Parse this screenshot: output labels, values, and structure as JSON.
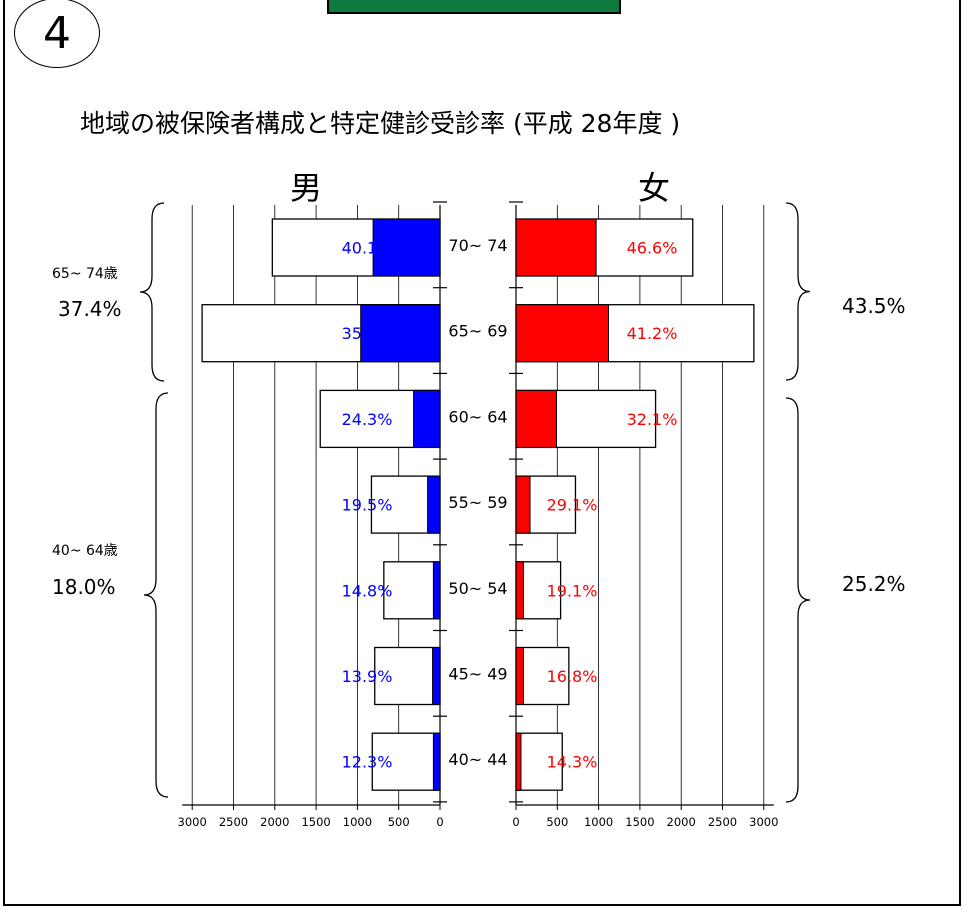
{
  "badge": {
    "number": "4"
  },
  "title": "地域の被保険者構成と特定健診受診率 (平成 28年度 )",
  "colors": {
    "male": "#0000ff",
    "female": "#ff0000",
    "green_box": "#0f7a3d"
  },
  "groups": {
    "left": [
      {
        "label": "65~ 74歳",
        "value": "37.4%"
      },
      {
        "label": "40~ 64歳",
        "value": "18.0%"
      }
    ],
    "right": [
      {
        "value": "43.5%"
      },
      {
        "value": "25.2%"
      }
    ]
  },
  "chart_data": {
    "type": "bar",
    "subtype": "population-pyramid",
    "title": "地域の被保険者構成と特定健診受診率 (平成 28年度 )",
    "categories": [
      "70~ 74",
      "65~ 69",
      "60~ 64",
      "55~ 59",
      "50~ 54",
      "45~ 49",
      "40~ 44"
    ],
    "sides": [
      {
        "name": "男",
        "color": "#0000ff",
        "population": [
          2030,
          2880,
          1450,
          830,
          680,
          790,
          820
        ],
        "examined": [
          810,
          960,
          320,
          150,
          80,
          90,
          80
        ],
        "rate_labels": [
          "40.1%",
          "35.4%",
          "24.3%",
          "19.5%",
          "14.8%",
          "13.9%",
          "12.3%"
        ]
      },
      {
        "name": "女",
        "color": "#ff0000",
        "population": [
          2140,
          2880,
          1690,
          720,
          540,
          640,
          560
        ],
        "examined": [
          970,
          1120,
          490,
          170,
          90,
          90,
          60
        ],
        "rate_labels": [
          "46.6%",
          "41.2%",
          "32.1%",
          "29.1%",
          "19.1%",
          "16.8%",
          "14.3%"
        ]
      }
    ],
    "x_ticks": [
      "3000",
      "2500",
      "2000",
      "1500",
      "1000",
      "500",
      "0"
    ],
    "x_ticks_right": [
      "0",
      "500",
      "1000",
      "1500",
      "2000",
      "2500",
      "3000"
    ],
    "xlim": [
      0,
      3000
    ],
    "grid": true
  }
}
